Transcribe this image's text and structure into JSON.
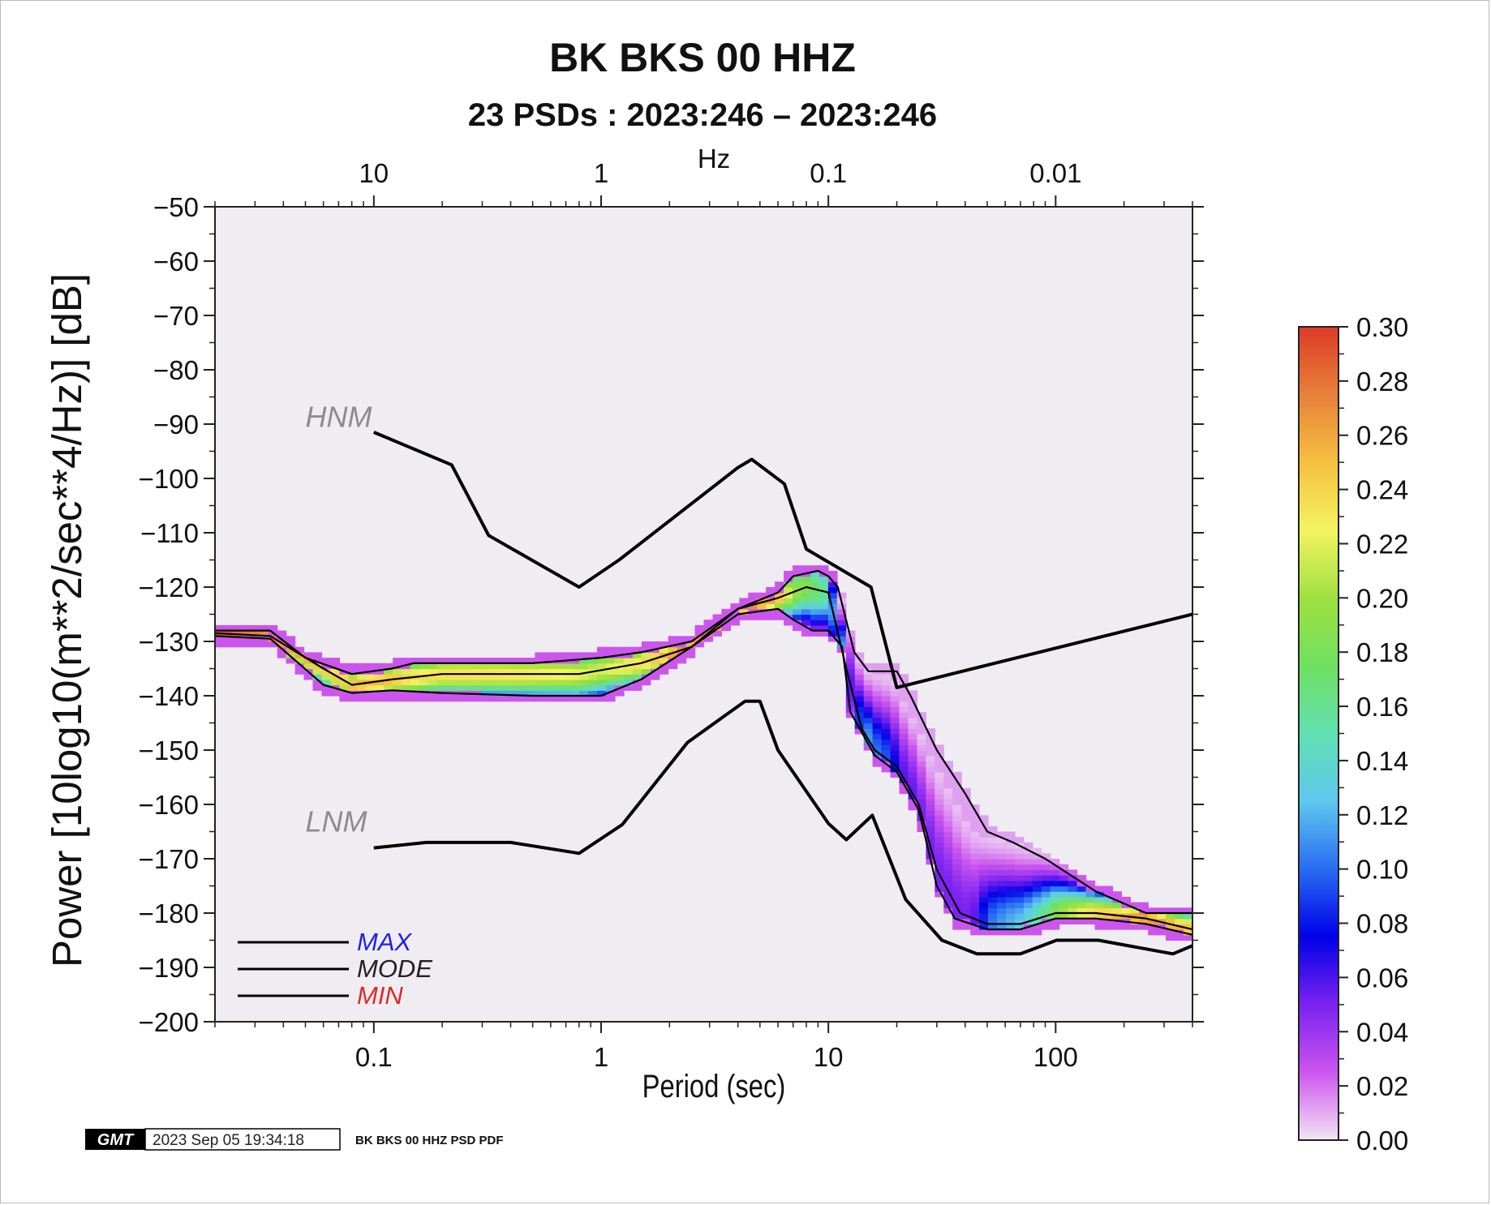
{
  "header": {
    "title": "BK BKS 00 HHZ",
    "subtitle": "23 PSDs : 2023:246 – 2023:246"
  },
  "footer": {
    "logo": "GMT",
    "timestamp": "2023 Sep 05 19:34:18",
    "caption": "BK BKS 00 HHZ PSD PDF"
  },
  "colors": {
    "background": "#ffffff",
    "plot_bg": "#f0edf2",
    "curve": "#000000",
    "model_label": "#8c8c8c",
    "max_label": "#1e1ef0",
    "mode_label": "#222222",
    "min_label": "#dd2a2a"
  },
  "chart_data": {
    "type": "heatmap",
    "title": "BK BKS 00 HHZ",
    "subtitle": "23 PSDs : 2023:246 – 2023:246",
    "xlabel": "Period (sec)",
    "x2label": "Hz",
    "ylabel": "Power [10log10(m**2/sec**4/Hz)] [dB]",
    "xscale": "log",
    "xlim": [
      0.02,
      400
    ],
    "ylim": [
      -200,
      -50
    ],
    "x_ticks": [
      "0.1",
      "1",
      "10",
      "100"
    ],
    "x_tick_values": [
      0.1,
      1,
      10,
      100
    ],
    "x2_ticks": [
      "10",
      "1",
      "0.1",
      "0.01"
    ],
    "x2_tick_values": [
      10,
      1,
      0.1,
      0.01
    ],
    "y_ticks": [
      "−50",
      "−60",
      "−70",
      "−80",
      "−90",
      "−100",
      "−110",
      "−120",
      "−130",
      "−140",
      "−150",
      "−160",
      "−170",
      "−180",
      "−190",
      "−200"
    ],
    "y_tick_values": [
      -50,
      -60,
      -70,
      -80,
      -90,
      -100,
      -110,
      -120,
      -130,
      -140,
      -150,
      -160,
      -170,
      -180,
      -190,
      -200
    ],
    "colorbar": {
      "range": [
        0,
        0.3
      ],
      "ticks": [
        "0.00",
        "0.02",
        "0.04",
        "0.06",
        "0.08",
        "0.10",
        "0.12",
        "0.14",
        "0.16",
        "0.18",
        "0.20",
        "0.22",
        "0.24",
        "0.26",
        "0.28",
        "0.30"
      ],
      "tick_values": [
        0,
        0.02,
        0.04,
        0.06,
        0.08,
        0.1,
        0.12,
        0.14,
        0.16,
        0.18,
        0.2,
        0.22,
        0.24,
        0.26,
        0.28,
        0.3
      ],
      "colors": [
        "#f3e6f3",
        "#cc55ee",
        "#7a22f0",
        "#0000e8",
        "#2a6cf2",
        "#5ec8ee",
        "#60e0b0",
        "#70e060",
        "#a0e040",
        "#f4f460",
        "#f6c040",
        "#e8803a",
        "#dd3a26"
      ]
    },
    "legend": {
      "position": "bottom-left",
      "entries": [
        "MAX",
        "MODE",
        "MIN"
      ]
    },
    "models": [
      {
        "name": "HNM",
        "label_at": [
          0.05,
          -90.5
        ],
        "points": [
          [
            0.1,
            -91.5
          ],
          [
            0.22,
            -97.5
          ],
          [
            0.32,
            -110.5
          ],
          [
            0.8,
            -120
          ],
          [
            1.2,
            -115
          ],
          [
            4.0,
            -98
          ],
          [
            4.6,
            -96.5
          ],
          [
            6.4,
            -101
          ],
          [
            8.0,
            -113
          ],
          [
            15.4,
            -120
          ],
          [
            20,
            -138.5
          ],
          [
            400,
            -125
          ]
        ]
      },
      {
        "name": "LNM",
        "label_at": [
          0.05,
          -165
        ],
        "points": [
          [
            0.1,
            -168
          ],
          [
            0.17,
            -167
          ],
          [
            0.4,
            -167
          ],
          [
            0.8,
            -169
          ],
          [
            1.24,
            -163.7
          ],
          [
            2.4,
            -148.6
          ],
          [
            4.3,
            -141
          ],
          [
            5.0,
            -141
          ],
          [
            6.0,
            -150
          ],
          [
            10.0,
            -163.5
          ],
          [
            12.0,
            -166.5
          ],
          [
            15.6,
            -162
          ],
          [
            21.9,
            -177.5
          ],
          [
            31.6,
            -185
          ],
          [
            45,
            -187.5
          ],
          [
            70,
            -187.5
          ],
          [
            101,
            -185
          ],
          [
            154,
            -185
          ],
          [
            328,
            -187.5
          ],
          [
            400,
            -186
          ]
        ]
      }
    ],
    "series": [
      {
        "name": "MAX",
        "points": [
          [
            0.02,
            -128
          ],
          [
            0.035,
            -128
          ],
          [
            0.05,
            -133
          ],
          [
            0.08,
            -136
          ],
          [
            0.12,
            -135
          ],
          [
            0.15,
            -134
          ],
          [
            0.25,
            -134
          ],
          [
            0.5,
            -134
          ],
          [
            1.0,
            -133
          ],
          [
            1.5,
            -132
          ],
          [
            2.5,
            -130
          ],
          [
            4.0,
            -124
          ],
          [
            6.0,
            -121
          ],
          [
            7.0,
            -118
          ],
          [
            9.0,
            -117
          ],
          [
            10.0,
            -118
          ],
          [
            11.0,
            -120
          ],
          [
            13.0,
            -132
          ],
          [
            15.0,
            -135.5
          ],
          [
            20.0,
            -135.5
          ],
          [
            23.0,
            -140
          ],
          [
            30.0,
            -150
          ],
          [
            40.0,
            -158
          ],
          [
            50.0,
            -165
          ],
          [
            65.0,
            -167
          ],
          [
            90.0,
            -170
          ],
          [
            150.0,
            -176
          ],
          [
            250.0,
            -180
          ],
          [
            400.0,
            -180
          ]
        ]
      },
      {
        "name": "MODE",
        "points": [
          [
            0.02,
            -128.5
          ],
          [
            0.035,
            -129
          ],
          [
            0.06,
            -135
          ],
          [
            0.08,
            -138
          ],
          [
            0.12,
            -137
          ],
          [
            0.2,
            -136
          ],
          [
            0.35,
            -136
          ],
          [
            0.5,
            -136
          ],
          [
            0.8,
            -136
          ],
          [
            1.5,
            -134
          ],
          [
            2.5,
            -131
          ],
          [
            4.0,
            -124
          ],
          [
            6.0,
            -122
          ],
          [
            8.0,
            -120
          ],
          [
            10.0,
            -121
          ],
          [
            12.0,
            -135
          ],
          [
            14.0,
            -146
          ],
          [
            16.0,
            -150
          ],
          [
            20.0,
            -153
          ],
          [
            25.0,
            -160
          ],
          [
            30.0,
            -172
          ],
          [
            38.0,
            -180
          ],
          [
            50.0,
            -182
          ],
          [
            70.0,
            -182
          ],
          [
            100.0,
            -180
          ],
          [
            150.0,
            -180
          ],
          [
            250.0,
            -181
          ],
          [
            400.0,
            -183
          ]
        ]
      },
      {
        "name": "MIN",
        "points": [
          [
            0.02,
            -129
          ],
          [
            0.035,
            -129.5
          ],
          [
            0.06,
            -138
          ],
          [
            0.08,
            -139.5
          ],
          [
            0.12,
            -139
          ],
          [
            0.2,
            -139.5
          ],
          [
            0.5,
            -140
          ],
          [
            1.0,
            -140
          ],
          [
            1.5,
            -137
          ],
          [
            2.5,
            -131
          ],
          [
            4.0,
            -125
          ],
          [
            6.0,
            -124
          ],
          [
            7.0,
            -126
          ],
          [
            8.5,
            -128
          ],
          [
            10.0,
            -128
          ],
          [
            11.5,
            -131
          ],
          [
            12.5,
            -143
          ],
          [
            16.0,
            -151
          ],
          [
            20.0,
            -154
          ],
          [
            25.0,
            -161
          ],
          [
            30.0,
            -175
          ],
          [
            36.0,
            -181
          ],
          [
            50.0,
            -183
          ],
          [
            70.0,
            -183
          ],
          [
            100.0,
            -181
          ],
          [
            150.0,
            -181
          ],
          [
            250.0,
            -182
          ],
          [
            400.0,
            -184
          ]
        ]
      }
    ]
  }
}
